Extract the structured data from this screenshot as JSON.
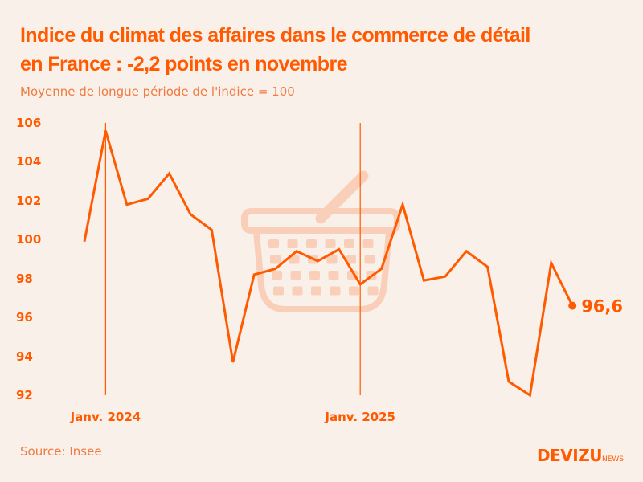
{
  "title_line1": "Indice du climat des affaires dans le commerce de détail",
  "title_line2": "en France : -2,2 points en novembre",
  "subtitle": "Moyenne de longue période de l'indice = 100",
  "source": "Source: Insee",
  "logo": {
    "main": "DEVIZU",
    "suffix": "NEWS"
  },
  "colors": {
    "accent": "#ff5a00",
    "background": "#faf0ea",
    "watermark": "#f9cfb9"
  },
  "watermark_icon": "shopping-basket-icon",
  "chart_data": {
    "type": "line",
    "title": "Indice du climat des affaires dans le commerce de détail en France : -2,2 points en novembre",
    "subtitle": "Moyenne de longue période de l'indice = 100",
    "ylim": [
      92,
      106
    ],
    "yticks": [
      "92",
      "94",
      "96",
      "98",
      "100",
      "102",
      "104",
      "106"
    ],
    "ytick_values": [
      92,
      94,
      96,
      98,
      100,
      102,
      104,
      106
    ],
    "x_markers": [
      {
        "label": "Janv. 2024",
        "index": 1
      },
      {
        "label": "Janv. 2025",
        "index": 13
      }
    ],
    "x": [
      "2023-12",
      "2024-01",
      "2024-02",
      "2024-03",
      "2024-04",
      "2024-05",
      "2024-06",
      "2024-07",
      "2024-08",
      "2024-09",
      "2024-10",
      "2024-11",
      "2024-12",
      "2025-01",
      "2025-02",
      "2025-03",
      "2025-04",
      "2025-05",
      "2025-06",
      "2025-07",
      "2025-08",
      "2025-09",
      "2025-10",
      "2025-11"
    ],
    "values": [
      99.9,
      105.6,
      101.8,
      102.1,
      103.4,
      101.3,
      100.5,
      93.7,
      98.2,
      98.5,
      99.4,
      98.9,
      99.5,
      97.7,
      98.5,
      101.8,
      97.9,
      98.1,
      99.4,
      98.6,
      92.7,
      92.0,
      98.8,
      96.6
    ],
    "last_label": "96,6",
    "grid": false,
    "legend": "none"
  }
}
